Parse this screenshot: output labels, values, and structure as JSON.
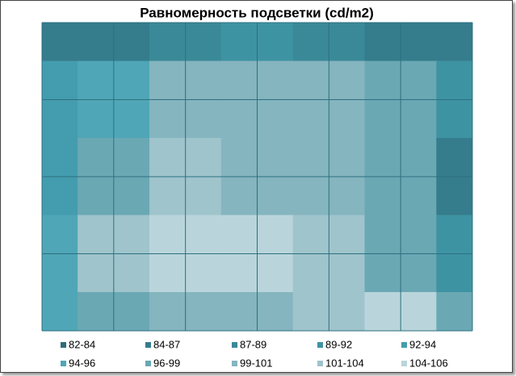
{
  "chart_data": {
    "type": "contour",
    "title": "Равномерность подсветки (cd/m2)",
    "grid_values": [
      [
        84,
        86,
        88,
        89,
        88,
        86,
        85
      ],
      [
        92,
        95,
        99,
        99,
        99,
        96,
        91
      ],
      [
        93,
        98,
        101,
        100,
        100,
        97,
        84
      ],
      [
        94,
        103,
        105,
        105,
        103,
        98,
        90
      ],
      [
        95,
        97,
        99,
        100,
        101,
        104,
        96
      ]
    ],
    "bands": [
      {
        "label": "82-84",
        "from": 82,
        "to": 84,
        "color": "#2f6c7b"
      },
      {
        "label": "84-87",
        "from": 84,
        "to": 87,
        "color": "#357c8c"
      },
      {
        "label": "87-89",
        "from": 87,
        "to": 89,
        "color": "#3a8998"
      },
      {
        "label": "89-92",
        "from": 89,
        "to": 92,
        "color": "#3e93a3"
      },
      {
        "label": "92-94",
        "from": 92,
        "to": 94,
        "color": "#439dae"
      },
      {
        "label": "94-96",
        "from": 94,
        "to": 96,
        "color": "#4fa6b6"
      },
      {
        "label": "96-99",
        "from": 96,
        "to": 99,
        "color": "#6aa8b4"
      },
      {
        "label": "99-101",
        "from": 99,
        "to": 101,
        "color": "#85b5bf"
      },
      {
        "label": "101-104",
        "from": 101,
        "to": 104,
        "color": "#9fc4cc"
      },
      {
        "label": "104-106",
        "from": 104,
        "to": 106,
        "color": "#b9d5db"
      }
    ]
  }
}
